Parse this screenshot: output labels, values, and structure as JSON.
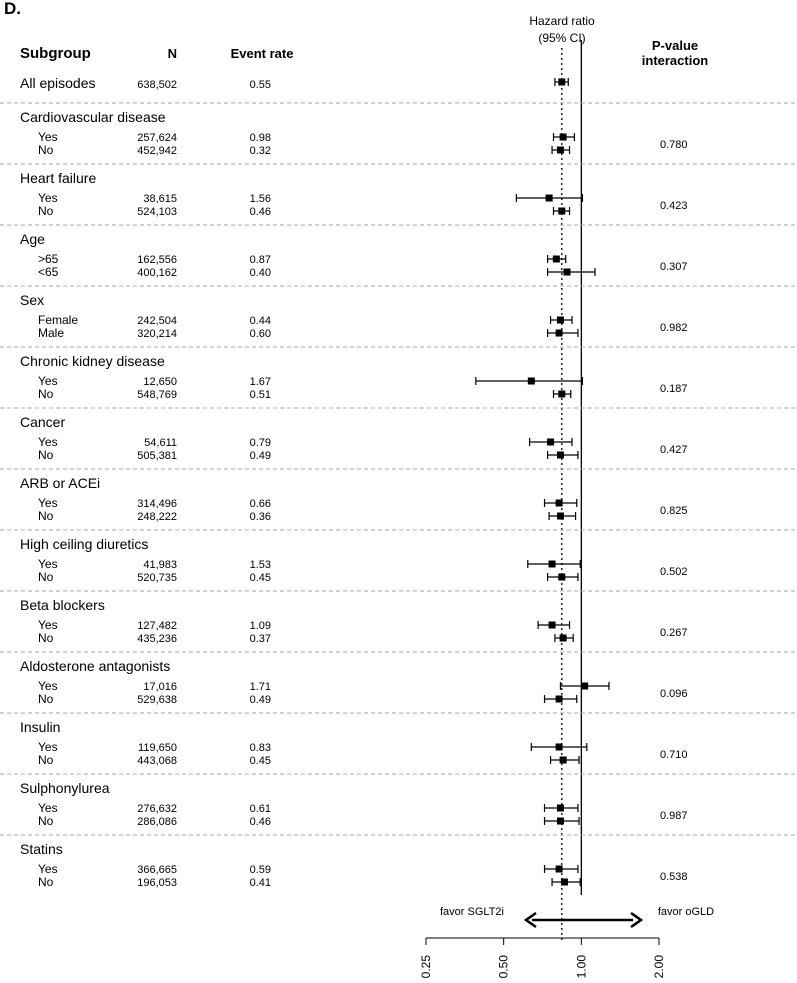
{
  "panel_label": "D.",
  "colors": {
    "text": "#000000",
    "separator": "#aaaaaa",
    "marker": "#000000"
  },
  "chart_data": {
    "type": "forest",
    "x_scale": "log",
    "xlim": [
      0.25,
      2.0
    ],
    "x_ticks": [
      0.25,
      0.5,
      1.0,
      2.0
    ],
    "x_tick_labels": [
      "0.25",
      "0.50",
      "1.00",
      "2.00"
    ],
    "reference_line": 1.0,
    "overall_line": 0.84,
    "headers": {
      "subgroup": "Subgroup",
      "n": "N",
      "event_rate": "Event rate",
      "hr_line1": "Hazard ratio",
      "hr_line2": "(95% CI)",
      "p_line1": "P-value",
      "p_line2": "interaction"
    },
    "favor_left": "favor SGLT2i",
    "favor_right": "favor oGLD",
    "overall": {
      "label": "All episodes",
      "n": "638,502",
      "event_rate": "0.55",
      "hr": 0.84,
      "lo": 0.79,
      "hi": 0.89
    },
    "groups": [
      {
        "title": "Cardiovascular disease",
        "p_interaction": "0.780",
        "rows": [
          {
            "label": "Yes",
            "n": "257,624",
            "event_rate": "0.98",
            "hr": 0.85,
            "lo": 0.78,
            "hi": 0.94
          },
          {
            "label": "No",
            "n": "452,942",
            "event_rate": "0.32",
            "hr": 0.83,
            "lo": 0.77,
            "hi": 0.9
          }
        ]
      },
      {
        "title": "Heart failure",
        "p_interaction": "0.423",
        "rows": [
          {
            "label": "Yes",
            "n": "38,615",
            "event_rate": "1.56",
            "hr": 0.75,
            "lo": 0.56,
            "hi": 1.01
          },
          {
            "label": "No",
            "n": "524,103",
            "event_rate": "0.46",
            "hr": 0.84,
            "lo": 0.78,
            "hi": 0.9
          }
        ]
      },
      {
        "title": "Age",
        "p_interaction": "0.307",
        "rows": [
          {
            "label": ">65",
            "n": "162,556",
            "event_rate": "0.87",
            "hr": 0.8,
            "lo": 0.74,
            "hi": 0.87
          },
          {
            "label": "<65",
            "n": "400,162",
            "event_rate": "0.40",
            "hr": 0.88,
            "lo": 0.74,
            "hi": 1.13
          }
        ]
      },
      {
        "title": "Sex",
        "p_interaction": "0.982",
        "rows": [
          {
            "label": "Female",
            "n": "242,504",
            "event_rate": "0.44",
            "hr": 0.83,
            "lo": 0.76,
            "hi": 0.92
          },
          {
            "label": "Male",
            "n": "320,214",
            "event_rate": "0.60",
            "hr": 0.82,
            "lo": 0.74,
            "hi": 0.97
          }
        ]
      },
      {
        "title": "Chronic kidney disease",
        "p_interaction": "0.187",
        "rows": [
          {
            "label": "Yes",
            "n": "12,650",
            "event_rate": "1.67",
            "hr": 0.64,
            "lo": 0.39,
            "hi": 1.01
          },
          {
            "label": "No",
            "n": "548,769",
            "event_rate": "0.51",
            "hr": 0.84,
            "lo": 0.78,
            "hi": 0.91
          }
        ]
      },
      {
        "title": "Cancer",
        "p_interaction": "0.427",
        "rows": [
          {
            "label": "Yes",
            "n": "54,611",
            "event_rate": "0.79",
            "hr": 0.76,
            "lo": 0.63,
            "hi": 0.92
          },
          {
            "label": "No",
            "n": "505,381",
            "event_rate": "0.49",
            "hr": 0.83,
            "lo": 0.74,
            "hi": 0.97
          }
        ]
      },
      {
        "title": "ARB or ACEi",
        "p_interaction": "0.825",
        "rows": [
          {
            "label": "Yes",
            "n": "314,496",
            "event_rate": "0.66",
            "hr": 0.82,
            "lo": 0.72,
            "hi": 0.96
          },
          {
            "label": "No",
            "n": "248,222",
            "event_rate": "0.36",
            "hr": 0.83,
            "lo": 0.75,
            "hi": 0.95
          }
        ]
      },
      {
        "title": "High ceiling diuretics",
        "p_interaction": "0.502",
        "rows": [
          {
            "label": "Yes",
            "n": "41,983",
            "event_rate": "1.53",
            "hr": 0.77,
            "lo": 0.62,
            "hi": 0.99
          },
          {
            "label": "No",
            "n": "520,735",
            "event_rate": "0.45",
            "hr": 0.84,
            "lo": 0.74,
            "hi": 0.97
          }
        ]
      },
      {
        "title": "Beta blockers",
        "p_interaction": "0.267",
        "rows": [
          {
            "label": "Yes",
            "n": "127,482",
            "event_rate": "1.09",
            "hr": 0.77,
            "lo": 0.68,
            "hi": 0.9
          },
          {
            "label": "No",
            "n": "435,236",
            "event_rate": "0.37",
            "hr": 0.85,
            "lo": 0.79,
            "hi": 0.93
          }
        ]
      },
      {
        "title": "Aldosterone antagonists",
        "p_interaction": "0.096",
        "rows": [
          {
            "label": "Yes",
            "n": "17,016",
            "event_rate": "1.71",
            "hr": 1.03,
            "lo": 0.83,
            "hi": 1.28
          },
          {
            "label": "No",
            "n": "529,638",
            "event_rate": "0.49",
            "hr": 0.82,
            "lo": 0.72,
            "hi": 0.96
          }
        ]
      },
      {
        "title": "Insulin",
        "p_interaction": "0.710",
        "rows": [
          {
            "label": "Yes",
            "n": "119,650",
            "event_rate": "0.83",
            "hr": 0.82,
            "lo": 0.64,
            "hi": 1.05
          },
          {
            "label": "No",
            "n": "443,068",
            "event_rate": "0.45",
            "hr": 0.85,
            "lo": 0.76,
            "hi": 0.98
          }
        ]
      },
      {
        "title": "Sulphonylurea",
        "p_interaction": "0.987",
        "rows": [
          {
            "label": "Yes",
            "n": "276,632",
            "event_rate": "0.61",
            "hr": 0.83,
            "lo": 0.72,
            "hi": 0.97
          },
          {
            "label": "No",
            "n": "286,086",
            "event_rate": "0.46",
            "hr": 0.83,
            "lo": 0.72,
            "hi": 0.98
          }
        ]
      },
      {
        "title": "Statins",
        "p_interaction": "0.538",
        "rows": [
          {
            "label": "Yes",
            "n": "366,665",
            "event_rate": "0.59",
            "hr": 0.82,
            "lo": 0.72,
            "hi": 0.97
          },
          {
            "label": "No",
            "n": "196,053",
            "event_rate": "0.41",
            "hr": 0.86,
            "lo": 0.77,
            "hi": 0.99
          }
        ]
      }
    ]
  }
}
